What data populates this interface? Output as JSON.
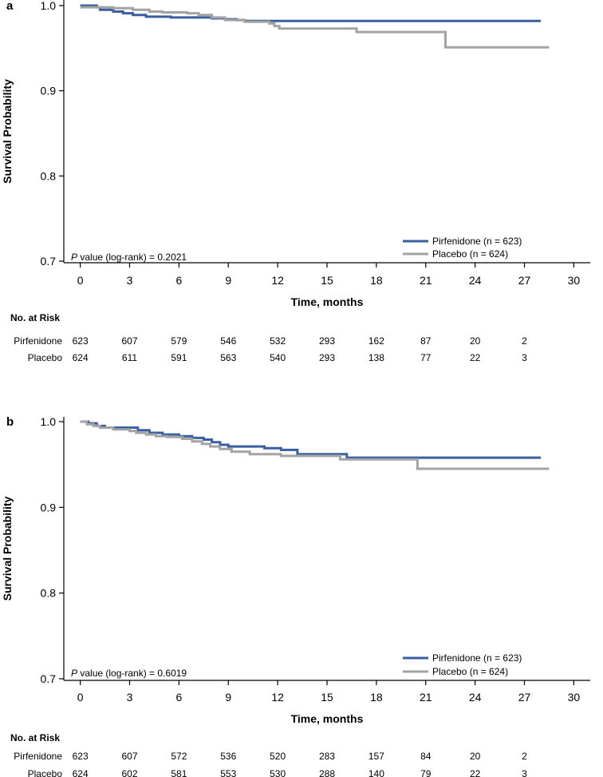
{
  "colors": {
    "pirfenidone": "#3a5fa0",
    "placebo": "#a3a3a3",
    "axis": "#000000"
  },
  "chart_data": [
    {
      "panel_label": "a",
      "type": "line",
      "step": true,
      "ylabel": "Survival Probability",
      "xlabel": "Time, months",
      "xlim": [
        -1,
        31
      ],
      "ylim": [
        0.7,
        1.0
      ],
      "x_ticks": [
        "0",
        "3",
        "6",
        "9",
        "12",
        "15",
        "18",
        "21",
        "24",
        "27",
        "30"
      ],
      "y_ticks": [
        "0.7",
        "0.8",
        "0.9",
        "1.0"
      ],
      "annotation": {
        "italic": "P",
        "text": " value (log-rank) = 0.2021"
      },
      "legend_position": "bottom-right",
      "series": [
        {
          "name": "Pirfenidone (n = 623)",
          "color_key": "pirfenidone",
          "points": [
            [
              0,
              1.0
            ],
            [
              1.0,
              0.998
            ],
            [
              1.2,
              0.995
            ],
            [
              2.0,
              0.993
            ],
            [
              2.6,
              0.991
            ],
            [
              3.2,
              0.989
            ],
            [
              4.0,
              0.987
            ],
            [
              5.5,
              0.986
            ],
            [
              8.0,
              0.985
            ],
            [
              8.8,
              0.984
            ],
            [
              9.5,
              0.983
            ],
            [
              10.0,
              0.982
            ],
            [
              28.0,
              0.982
            ]
          ]
        },
        {
          "name": "Placebo (n = 624)",
          "color_key": "placebo",
          "points": [
            [
              0,
              0.998
            ],
            [
              2.0,
              0.997
            ],
            [
              3.2,
              0.995
            ],
            [
              4.2,
              0.993
            ],
            [
              5.0,
              0.992
            ],
            [
              6.5,
              0.991
            ],
            [
              7.2,
              0.989
            ],
            [
              8.0,
              0.986
            ],
            [
              8.8,
              0.983
            ],
            [
              10.0,
              0.981
            ],
            [
              11.5,
              0.979
            ],
            [
              11.8,
              0.976
            ],
            [
              12.1,
              0.973
            ],
            [
              16.8,
              0.969
            ],
            [
              22.2,
              0.951
            ],
            [
              28.5,
              0.951
            ]
          ]
        }
      ],
      "risk_table": {
        "title": "No. at Risk",
        "times": [
          0,
          3,
          6,
          9,
          12,
          15,
          18,
          21,
          24,
          27
        ],
        "rows": [
          {
            "label": "Pirfenidone",
            "values": [
              "623",
              "607",
              "579",
              "546",
              "532",
              "293",
              "162",
              "87",
              "20",
              "2"
            ]
          },
          {
            "label": "Placebo",
            "values": [
              "624",
              "611",
              "591",
              "563",
              "540",
              "293",
              "138",
              "77",
              "22",
              "3"
            ]
          }
        ]
      }
    },
    {
      "panel_label": "b",
      "type": "line",
      "step": true,
      "ylabel": "Survival Probability",
      "xlabel": "Time, months",
      "xlim": [
        -1,
        31
      ],
      "ylim": [
        0.7,
        1.0
      ],
      "x_ticks": [
        "0",
        "3",
        "6",
        "9",
        "12",
        "15",
        "18",
        "21",
        "24",
        "27",
        "30"
      ],
      "y_ticks": [
        "0.7",
        "0.8",
        "0.9",
        "1.0"
      ],
      "annotation": {
        "italic": "P",
        "text": " value (log-rank) = 0.6019"
      },
      "legend_position": "bottom-right",
      "series": [
        {
          "name": "Pirfenidone (n = 623)",
          "color_key": "pirfenidone",
          "points": [
            [
              0,
              1.0
            ],
            [
              0.5,
              0.998
            ],
            [
              1.0,
              0.995
            ],
            [
              1.5,
              0.993
            ],
            [
              3.5,
              0.99
            ],
            [
              4.2,
              0.987
            ],
            [
              5.0,
              0.985
            ],
            [
              6.0,
              0.983
            ],
            [
              6.8,
              0.981
            ],
            [
              7.5,
              0.979
            ],
            [
              8.0,
              0.976
            ],
            [
              8.5,
              0.973
            ],
            [
              9.0,
              0.971
            ],
            [
              11.2,
              0.969
            ],
            [
              12.2,
              0.967
            ],
            [
              13.2,
              0.962
            ],
            [
              16.2,
              0.958
            ],
            [
              28.0,
              0.958
            ]
          ]
        },
        {
          "name": "Placebo (n = 624)",
          "color_key": "placebo",
          "points": [
            [
              0,
              1.0
            ],
            [
              0.4,
              0.997
            ],
            [
              0.8,
              0.995
            ],
            [
              1.2,
              0.993
            ],
            [
              2.0,
              0.991
            ],
            [
              3.0,
              0.989
            ],
            [
              3.4,
              0.987
            ],
            [
              4.0,
              0.985
            ],
            [
              4.6,
              0.983
            ],
            [
              5.3,
              0.982
            ],
            [
              6.2,
              0.98
            ],
            [
              6.8,
              0.977
            ],
            [
              7.4,
              0.974
            ],
            [
              7.9,
              0.971
            ],
            [
              8.5,
              0.968
            ],
            [
              9.2,
              0.965
            ],
            [
              10.3,
              0.962
            ],
            [
              12.2,
              0.96
            ],
            [
              15.8,
              0.956
            ],
            [
              20.5,
              0.945
            ],
            [
              28.5,
              0.945
            ]
          ]
        }
      ],
      "risk_table": {
        "title": "No. at Risk",
        "times": [
          0,
          3,
          6,
          9,
          12,
          15,
          18,
          21,
          24,
          27
        ],
        "rows": [
          {
            "label": "Pirfenidone",
            "values": [
              "623",
              "607",
              "572",
              "536",
              "520",
              "283",
              "157",
              "84",
              "20",
              "2"
            ]
          },
          {
            "label": "Placebo",
            "values": [
              "624",
              "602",
              "581",
              "553",
              "530",
              "288",
              "140",
              "79",
              "22",
              "3"
            ]
          }
        ]
      }
    }
  ]
}
